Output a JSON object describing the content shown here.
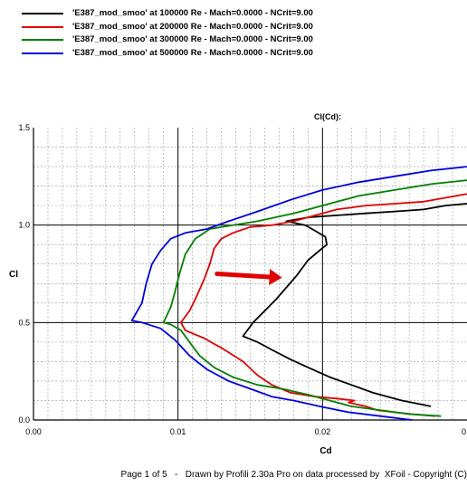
{
  "legend": [
    {
      "label": "'E387_mod_smoo' at 100000 Re - Mach=0.0000 - NCrit=9.00",
      "color": "#000000"
    },
    {
      "label": "'E387_mod_smoo' at 200000 Re - Mach=0.0000 - NCrit=9.00",
      "color": "#e00000"
    },
    {
      "label": "'E387_mod_smoo' at 300000 Re - Mach=0.0000 - NCrit=9.00",
      "color": "#008000"
    },
    {
      "label": "'E387_mod_smoo' at 500000 Re - Mach=0.0000 - NCrit=9.00",
      "color": "#0000e0"
    }
  ],
  "footer": {
    "page": "Page 1 of 5",
    "sep": "-",
    "drawn": "Drawn by Profili 2.30a Pro on data processed by",
    "xfoil": "XFoil - Copyright (C)"
  },
  "chart_data": {
    "type": "line",
    "title": "Cl(Cd):",
    "xlabel": "Cd",
    "ylabel": "Cl",
    "xlim": [
      0,
      0.03
    ],
    "ylim": [
      0,
      1.5
    ],
    "x_ticks": [
      "0.00",
      "0.01",
      "0.02",
      "0"
    ],
    "y_ticks": [
      "0.0",
      "0.5",
      "1.0",
      "1.5"
    ],
    "grid": true,
    "legend_position": "top-left",
    "annotation": {
      "type": "arrow",
      "color": "#e00000",
      "from": [
        0.0127,
        0.75
      ],
      "to": [
        0.0172,
        0.73
      ]
    },
    "series": [
      {
        "name": "'E387_mod_smoo' at 100000 Re - Mach=0.0000 - NCrit=9.00",
        "color": "#000000",
        "points": [
          [
            0.0275,
            0.07
          ],
          [
            0.0255,
            0.1
          ],
          [
            0.0235,
            0.14
          ],
          [
            0.022,
            0.18
          ],
          [
            0.0205,
            0.22
          ],
          [
            0.019,
            0.27
          ],
          [
            0.0178,
            0.31
          ],
          [
            0.0165,
            0.36
          ],
          [
            0.0155,
            0.4
          ],
          [
            0.0145,
            0.43
          ],
          [
            0.0152,
            0.5
          ],
          [
            0.016,
            0.56
          ],
          [
            0.0168,
            0.62
          ],
          [
            0.0175,
            0.68
          ],
          [
            0.0182,
            0.74
          ],
          [
            0.019,
            0.82
          ],
          [
            0.0198,
            0.87
          ],
          [
            0.0203,
            0.9
          ],
          [
            0.0202,
            0.94
          ],
          [
            0.0195,
            0.97
          ],
          [
            0.0188,
            1.0
          ],
          [
            0.0175,
            1.02
          ],
          [
            0.019,
            1.04
          ],
          [
            0.021,
            1.05
          ],
          [
            0.023,
            1.06
          ],
          [
            0.025,
            1.07
          ],
          [
            0.027,
            1.08
          ],
          [
            0.0285,
            1.1
          ],
          [
            0.03,
            1.11
          ]
        ]
      },
      {
        "name": "'E387_mod_smoo' at 200000 Re - Mach=0.0000 - NCrit=9.00",
        "color": "#e00000",
        "points": [
          [
            0.0278,
            0.02
          ],
          [
            0.0262,
            0.03
          ],
          [
            0.025,
            0.04
          ],
          [
            0.0238,
            0.05
          ],
          [
            0.023,
            0.07
          ],
          [
            0.0218,
            0.09
          ],
          [
            0.0222,
            0.1
          ],
          [
            0.021,
            0.11
          ],
          [
            0.0195,
            0.12
          ],
          [
            0.0178,
            0.14
          ],
          [
            0.0165,
            0.18
          ],
          [
            0.0155,
            0.23
          ],
          [
            0.0145,
            0.3
          ],
          [
            0.013,
            0.37
          ],
          [
            0.0118,
            0.42
          ],
          [
            0.0105,
            0.46
          ],
          [
            0.0102,
            0.5
          ],
          [
            0.0108,
            0.56
          ],
          [
            0.0112,
            0.62
          ],
          [
            0.0118,
            0.72
          ],
          [
            0.0122,
            0.8
          ],
          [
            0.0125,
            0.88
          ],
          [
            0.013,
            0.93
          ],
          [
            0.0138,
            0.96
          ],
          [
            0.015,
            0.99
          ],
          [
            0.0165,
            1.0
          ],
          [
            0.018,
            1.02
          ],
          [
            0.0195,
            1.05
          ],
          [
            0.021,
            1.08
          ],
          [
            0.023,
            1.1
          ],
          [
            0.025,
            1.11
          ],
          [
            0.027,
            1.12
          ],
          [
            0.0285,
            1.14
          ],
          [
            0.03,
            1.16
          ]
        ]
      },
      {
        "name": "'E387_mod_smoo' at 300000 Re - Mach=0.0000 - NCrit=9.00",
        "color": "#008000",
        "points": [
          [
            0.0282,
            0.02
          ],
          [
            0.026,
            0.03
          ],
          [
            0.024,
            0.05
          ],
          [
            0.022,
            0.07
          ],
          [
            0.0205,
            0.1
          ],
          [
            0.019,
            0.13
          ],
          [
            0.0172,
            0.16
          ],
          [
            0.0155,
            0.18
          ],
          [
            0.0138,
            0.22
          ],
          [
            0.0125,
            0.27
          ],
          [
            0.0115,
            0.33
          ],
          [
            0.0108,
            0.4
          ],
          [
            0.0102,
            0.46
          ],
          [
            0.0095,
            0.49
          ],
          [
            0.009,
            0.5
          ],
          [
            0.0095,
            0.58
          ],
          [
            0.0098,
            0.66
          ],
          [
            0.0101,
            0.75
          ],
          [
            0.0105,
            0.85
          ],
          [
            0.0112,
            0.93
          ],
          [
            0.0122,
            0.98
          ],
          [
            0.0138,
            1.0
          ],
          [
            0.0155,
            1.02
          ],
          [
            0.018,
            1.06
          ],
          [
            0.0205,
            1.11
          ],
          [
            0.0225,
            1.15
          ],
          [
            0.025,
            1.18
          ],
          [
            0.0275,
            1.21
          ],
          [
            0.03,
            1.23
          ]
        ]
      },
      {
        "name": "'E387_mod_smoo' at 500000 Re - Mach=0.0000 - NCrit=9.00",
        "color": "#0000e0",
        "points": [
          [
            0.0262,
            0.0
          ],
          [
            0.024,
            0.02
          ],
          [
            0.0218,
            0.04
          ],
          [
            0.0198,
            0.07
          ],
          [
            0.018,
            0.1
          ],
          [
            0.0165,
            0.12
          ],
          [
            0.015,
            0.16
          ],
          [
            0.0135,
            0.2
          ],
          [
            0.012,
            0.26
          ],
          [
            0.0108,
            0.33
          ],
          [
            0.0098,
            0.41
          ],
          [
            0.0088,
            0.47
          ],
          [
            0.0075,
            0.5
          ],
          [
            0.0068,
            0.51
          ],
          [
            0.0075,
            0.6
          ],
          [
            0.0078,
            0.7
          ],
          [
            0.0082,
            0.8
          ],
          [
            0.0088,
            0.87
          ],
          [
            0.0095,
            0.93
          ],
          [
            0.0105,
            0.96
          ],
          [
            0.012,
            0.98
          ],
          [
            0.0135,
            1.02
          ],
          [
            0.0155,
            1.07
          ],
          [
            0.0178,
            1.13
          ],
          [
            0.02,
            1.18
          ],
          [
            0.0225,
            1.22
          ],
          [
            0.025,
            1.25
          ],
          [
            0.0275,
            1.28
          ],
          [
            0.03,
            1.3
          ]
        ]
      }
    ]
  }
}
